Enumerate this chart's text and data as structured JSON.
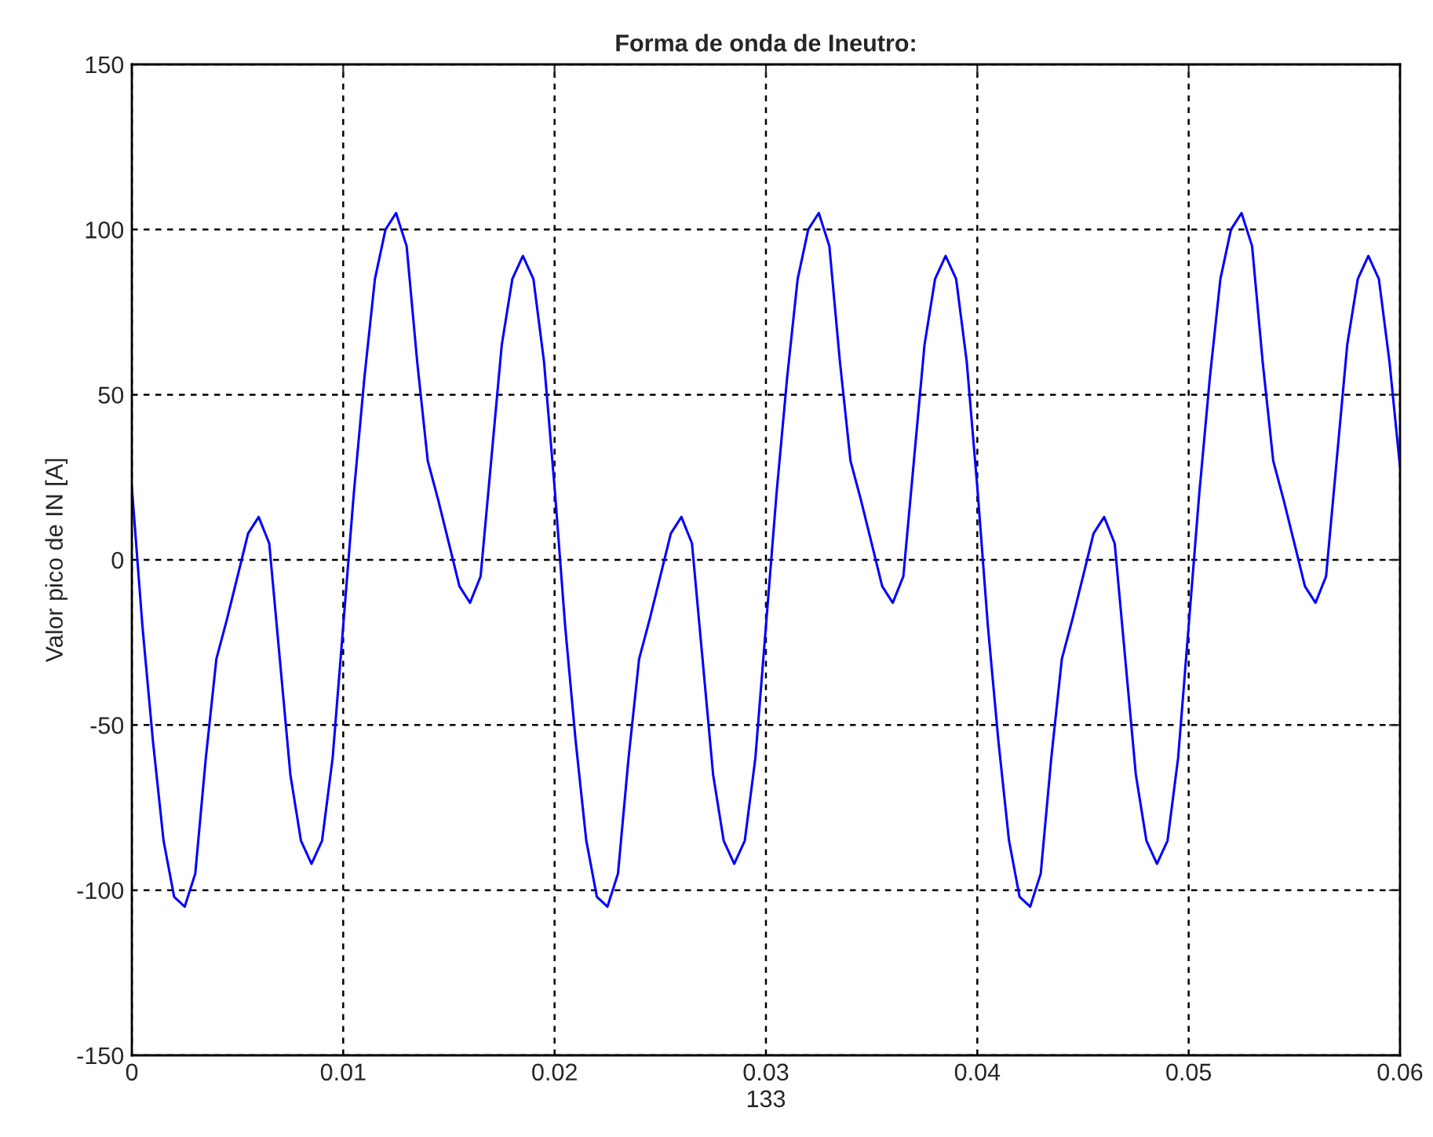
{
  "chart_data": {
    "type": "line",
    "title": "Forma de onda de Ineutro:",
    "xlabel": "133",
    "ylabel": "Valor pico de IN [A]",
    "x": [
      0,
      0.0005,
      0.001,
      0.0015,
      0.002,
      0.0025,
      0.003,
      0.0035,
      0.004,
      0.0045,
      0.005,
      0.0055,
      0.006,
      0.0065,
      0.007,
      0.0075,
      0.008,
      0.0085,
      0.009,
      0.0095,
      0.01,
      0.0105,
      0.011,
      0.0115,
      0.012,
      0.0125,
      0.013,
      0.0135,
      0.014,
      0.0145,
      0.015,
      0.0155,
      0.016,
      0.0165,
      0.017,
      0.0175,
      0.018,
      0.0185,
      0.019,
      0.0195,
      0.02,
      0.0205,
      0.021,
      0.0215,
      0.022,
      0.0225,
      0.023,
      0.0235,
      0.024,
      0.0245,
      0.025,
      0.0255,
      0.026,
      0.0265,
      0.027,
      0.0275,
      0.028,
      0.0285,
      0.029,
      0.0295,
      0.03,
      0.0305,
      0.031,
      0.0315,
      0.032,
      0.0325,
      0.033,
      0.0335,
      0.034,
      0.0345,
      0.035,
      0.0355,
      0.036,
      0.0365,
      0.037,
      0.0375,
      0.038,
      0.0385,
      0.039,
      0.0395,
      0.04,
      0.0405,
      0.041,
      0.0415,
      0.042,
      0.0425,
      0.043,
      0.0435,
      0.044,
      0.0445,
      0.045,
      0.0455,
      0.046,
      0.0465,
      0.047,
      0.0475,
      0.048,
      0.0485,
      0.049,
      0.0495,
      0.05,
      0.0505,
      0.051,
      0.0515,
      0.052,
      0.0525,
      0.053,
      0.0535,
      0.054,
      0.0545,
      0.055,
      0.0555,
      0.056,
      0.0565,
      0.057,
      0.0575,
      0.058,
      0.0585,
      0.059,
      0.0595,
      0.06
    ],
    "series": [
      {
        "color": "#0000ff",
        "values": [
          22,
          -20,
          -55,
          -85,
          -102,
          -105,
          -95,
          -60,
          -30,
          -18,
          -5,
          8,
          13,
          5,
          -30,
          -65,
          -85,
          -92,
          -85,
          -60,
          -20,
          20,
          55,
          85,
          100,
          105,
          95,
          60,
          30,
          18,
          5,
          -8,
          -13,
          -5,
          30,
          65,
          85,
          92,
          85,
          60,
          22,
          -20,
          -55,
          -85,
          -102,
          -105,
          -95,
          -60,
          -30,
          -18,
          -5,
          8,
          13,
          5,
          -30,
          -65,
          -85,
          -92,
          -85,
          -60,
          -20,
          20,
          55,
          85,
          100,
          105,
          95,
          60,
          30,
          18,
          5,
          -8,
          -13,
          -5,
          30,
          65,
          85,
          92,
          85,
          60,
          22,
          -20,
          -55,
          -85,
          -102,
          -105,
          -95,
          -60,
          -30,
          -18,
          -5,
          8,
          13,
          5,
          -30,
          -65,
          -85,
          -92,
          -85,
          -60,
          -20,
          20,
          55,
          85,
          100,
          105,
          95,
          60,
          30,
          18,
          5,
          -8,
          -13,
          -5,
          30,
          65,
          85,
          92,
          85,
          60,
          28
        ]
      }
    ],
    "xlim": [
      0,
      0.06
    ],
    "xticks": [
      0,
      0.01,
      0.02,
      0.03,
      0.04,
      0.05,
      0.06
    ],
    "ylim": [
      -150,
      150
    ],
    "yticks": [
      -150,
      -100,
      -50,
      0,
      50,
      100,
      150
    ],
    "grid": true,
    "line_style": "solid"
  }
}
